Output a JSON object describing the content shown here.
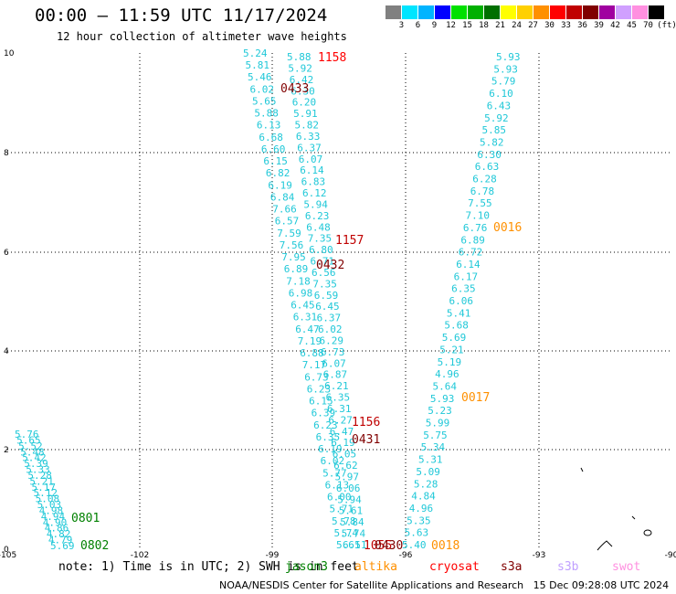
{
  "header": {
    "title": "00:00 – 11:59 UTC 11/17/2024",
    "subtitle": "12 hour collection of altimeter wave heights"
  },
  "colorbar": {
    "unit": "(ft)",
    "ticks": [
      "3",
      "6",
      "9",
      "12",
      "15",
      "18",
      "21",
      "24",
      "27",
      "30",
      "33",
      "36",
      "39",
      "42",
      "45",
      "70"
    ],
    "colors": [
      "#808080",
      "#00e5ff",
      "#00b4ff",
      "#0000ff",
      "#00e000",
      "#00b000",
      "#007000",
      "#ffff00",
      "#ffd000",
      "#ff9000",
      "#ff0000",
      "#c00000",
      "#800000",
      "#a000a0",
      "#d0a0ff",
      "#ff90e0",
      "#000000"
    ]
  },
  "axes": {
    "x_ticks": [
      "-105",
      "-102",
      "-99",
      "-96",
      "-93",
      "-90"
    ],
    "y_ticks": [
      "0",
      "2",
      "4",
      "6",
      "8",
      "10"
    ]
  },
  "tracks": {
    "track_a": [
      "5.24",
      "5.81",
      "5.46",
      "6.02",
      "5.65",
      "5.88",
      "6.13",
      "6.68",
      "6.60",
      "6.15",
      "6.82",
      "6.19",
      "6.84",
      "7.66",
      "6.57",
      "7.59",
      "7.56",
      "7.95",
      "6.89",
      "7.18",
      "6.98",
      "6.45",
      "6.31",
      "6.47",
      "7.19",
      "6.88",
      "7.17",
      "6.73",
      "6.23",
      "6.15",
      "6.39",
      "6.23",
      "6.35",
      "6.19",
      "6.02",
      "5.77",
      "6.13",
      "6.00",
      "5.71",
      "5.78",
      "5.74",
      "5.61"
    ],
    "track_b": [
      "5.88",
      "5.92",
      "6.42",
      "6.30",
      "6.20",
      "5.91",
      "5.82",
      "6.33",
      "6.37",
      "6.07",
      "6.14",
      "6.83",
      "6.12",
      "5.94",
      "6.23",
      "6.48",
      "7.35",
      "6.80",
      "6.71",
      "6.56",
      "7.35",
      "6.59",
      "6.45",
      "6.37",
      "6.02",
      "6.29",
      "6.73",
      "6.07",
      "6.87",
      "6.21",
      "6.35",
      "6.31",
      "6.27",
      "6.47",
      "6.19",
      "6.05",
      "6.62",
      "5.97",
      "6.06",
      "5.94",
      "5.61",
      "5.84",
      "5.74",
      "6.51"
    ],
    "track_c": [
      "5.93",
      "5.93",
      "5.79",
      "6.10",
      "6.43",
      "5.92",
      "5.85",
      "5.82",
      "6.30",
      "6.63",
      "6.28",
      "6.78",
      "7.55",
      "7.10",
      "6.76",
      "6.89",
      "6.72",
      "6.14",
      "6.17",
      "6.35",
      "6.06",
      "5.41",
      "5.68",
      "5.69",
      "5.21",
      "5.19",
      "4.96",
      "5.64",
      "5.93",
      "5.23",
      "5.99",
      "5.75",
      "5.34",
      "5.31",
      "5.09",
      "5.28",
      "4.84",
      "4.96",
      "5.35",
      "5.63",
      "5.40"
    ],
    "track_d": [
      "5.76",
      "5.65",
      "5.52",
      "5.48",
      "5.42",
      "5.39",
      "5.33",
      "5.28",
      "5.21",
      "5.17",
      "5.12",
      "5.08",
      "5.03",
      "4.98",
      "4.94",
      "4.90",
      "4.86",
      "4.82",
      "4.79",
      "5.69"
    ]
  },
  "times": {
    "t1158": {
      "label": "1158",
      "color": "#ff0000"
    },
    "t0433": {
      "label": "0433",
      "color": "#800000"
    },
    "t1157": {
      "label": "1157",
      "color": "#c00000"
    },
    "t0432": {
      "label": "0432",
      "color": "#800000"
    },
    "t1156": {
      "label": "1156",
      "color": "#c00000"
    },
    "t0431": {
      "label": "0431",
      "color": "#800000"
    },
    "t0016": {
      "label": "0016",
      "color": "#ff9000"
    },
    "t0017": {
      "label": "0017",
      "color": "#ff9000"
    },
    "t0018": {
      "label": "0018",
      "color": "#ff9000"
    },
    "t1055": {
      "label": "1055",
      "color": "#c00000"
    },
    "t0430": {
      "label": "0430",
      "color": "#800000"
    },
    "t0801": {
      "label": "0801",
      "color": "#008000"
    },
    "t0802": {
      "label": "0802",
      "color": "#008000"
    }
  },
  "footer": {
    "notes": "note: 1) Time is in UTC; 2) SWH is in feet",
    "satellites": [
      {
        "name": "jason3",
        "color": "#008000"
      },
      {
        "name": "altika",
        "color": "#ff9000"
      },
      {
        "name": "cryosat",
        "color": "#ff0000"
      },
      {
        "name": "s3a",
        "color": "#800000"
      },
      {
        "name": "s3b",
        "color": "#c0a0ff"
      },
      {
        "name": "swot",
        "color": "#ff90e0"
      }
    ],
    "credit": "NOAA/NESDIS Center for Satellite Applications and Research   15 Dec 09:28:08 UTC 2024"
  }
}
